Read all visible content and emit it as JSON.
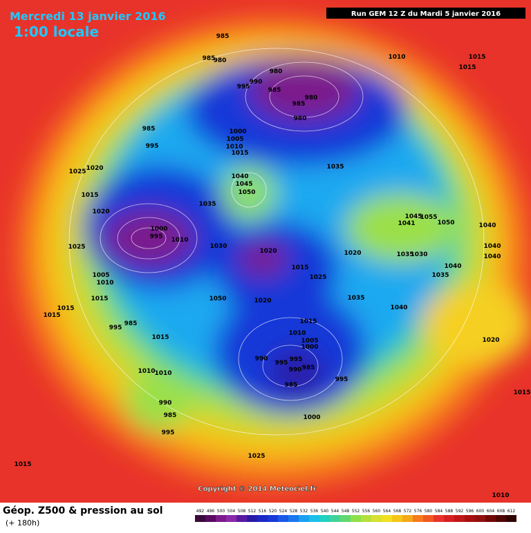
{
  "header": {
    "date": "Mercredi 13 janvier 2016",
    "time": "1:00 locale",
    "run": "Run GEM 12 Z du Mardi 5 janvier 2016"
  },
  "copyright": "Copyright © 2014 Meteociel.fr",
  "legend": {
    "title": "Géop. Z500 & pression au sol",
    "subtitle": "(+ 180h)",
    "ticks": [
      492,
      496,
      500,
      504,
      508,
      512,
      516,
      520,
      524,
      528,
      532,
      536,
      540,
      544,
      548,
      552,
      556,
      560,
      564,
      568,
      572,
      576,
      580,
      584,
      588,
      592,
      596,
      600,
      604,
      608,
      612
    ]
  },
  "isobars": {
    "labels": [
      985,
      985,
      980,
      1010,
      1015,
      1015,
      980,
      990,
      985,
      995,
      980,
      985,
      980,
      985,
      1000,
      1005,
      1010,
      995,
      1015,
      1035,
      1025,
      1020,
      1040,
      1045,
      1050,
      1015,
      1035,
      1020,
      1045,
      1055,
      1041,
      1050,
      1040,
      1000,
      995,
      1010,
      1030,
      1025,
      1020,
      1020,
      1035,
      1030,
      1040,
      1040,
      1040,
      1015,
      1035,
      1025,
      1005,
      1010,
      1015,
      1050,
      1035,
      1020,
      1040,
      1015,
      1015,
      1015,
      985,
      995,
      1010,
      1005,
      1000,
      1020,
      1015,
      990,
      995,
      995,
      985,
      990,
      1010,
      1010,
      995,
      985,
      1015,
      990,
      985,
      1000,
      995,
      1025,
      1015,
      1010
    ]
  }
}
